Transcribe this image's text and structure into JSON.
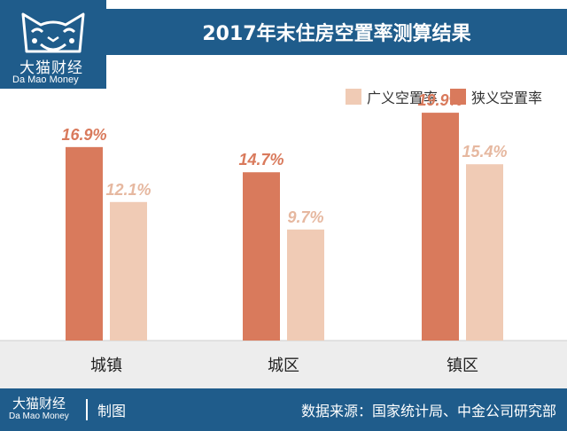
{
  "brand": {
    "name_cn": "大猫财经",
    "name_en": "Da Mao Money"
  },
  "title": "2017年末住房空置率测算结果",
  "colors": {
    "broad": "#f0cbb5",
    "narrow": "#d97a5c",
    "navy": "#1f5c8b",
    "label_dark": "#d97a5c",
    "label_light": "#e6b8a0"
  },
  "chart_data": {
    "type": "bar",
    "categories": [
      "城镇",
      "城区",
      "镇区"
    ],
    "series": [
      {
        "name": "狭义空置率",
        "values": [
          16.9,
          14.7,
          19.9
        ],
        "labels": [
          "16.9%",
          "14.7%",
          "19.9%"
        ]
      },
      {
        "name": "广义空置率",
        "values": [
          12.1,
          9.7,
          15.4
        ],
        "labels": [
          "12.1%",
          "9.7%",
          "15.4%"
        ]
      }
    ],
    "legend": [
      "广义空置率",
      "狭义空置率"
    ],
    "ylim": [
      0,
      22
    ],
    "grid": false,
    "legend_position": "top-right"
  },
  "footer": {
    "maker": "制图",
    "source": "数据来源：国家统计局、中金公司研究部"
  }
}
